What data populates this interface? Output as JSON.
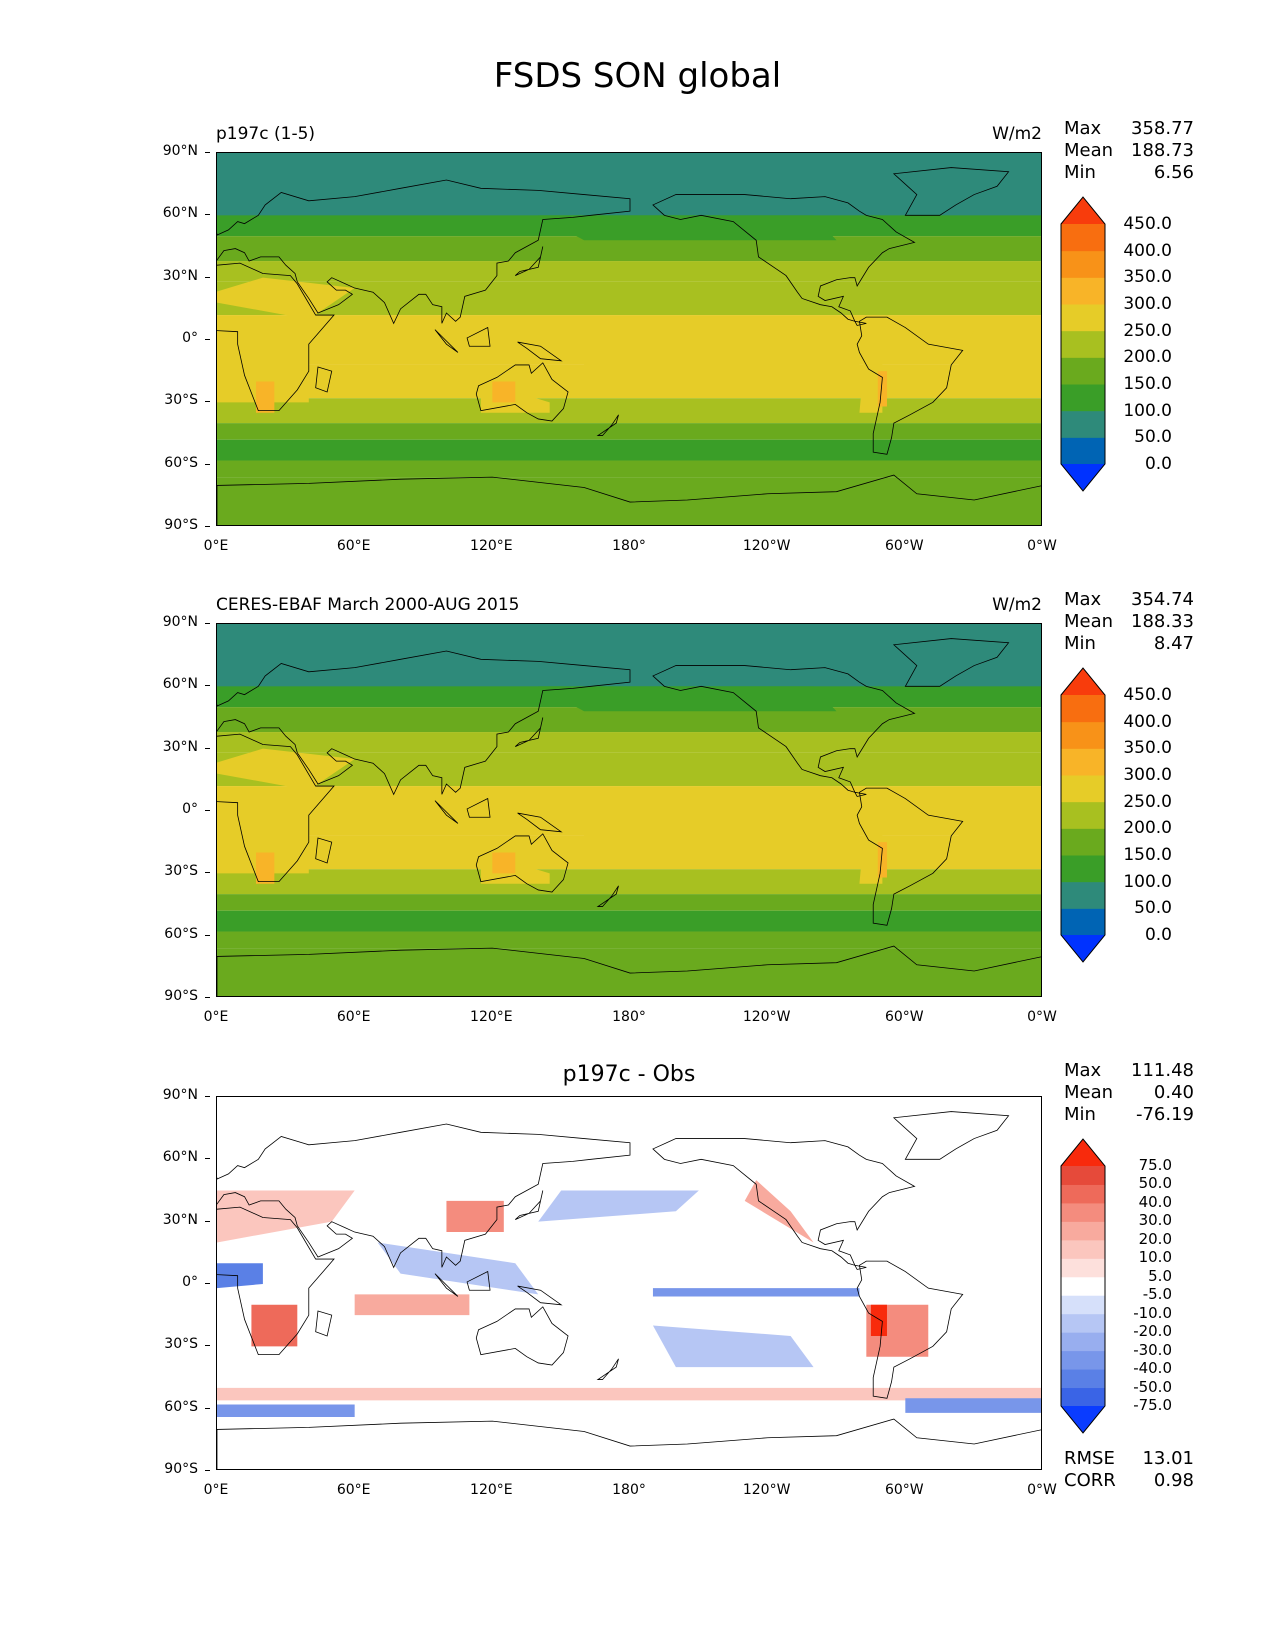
{
  "title": "FSDS SON global",
  "panels": [
    {
      "label": "p197c (1-5)",
      "units": "W/m2",
      "center_title": "",
      "stats": {
        "max_label": "Max",
        "max": "358.77",
        "mean_label": "Mean",
        "mean": "188.73",
        "min_label": "Min",
        "min": "6.56"
      },
      "map_style": "abs"
    },
    {
      "label": "CERES-EBAF March 2000-AUG 2015",
      "units": "W/m2",
      "center_title": "",
      "stats": {
        "max_label": "Max",
        "max": "354.74",
        "mean_label": "Mean",
        "mean": "188.33",
        "min_label": "Min",
        "min": "8.47"
      },
      "map_style": "abs"
    },
    {
      "label": "",
      "units": "",
      "center_title": "p197c - Obs",
      "stats": {
        "max_label": "Max",
        "max": "111.48",
        "mean_label": "Mean",
        "mean": "0.40",
        "min_label": "Min",
        "min": "-76.19"
      },
      "map_style": "diff",
      "extra_stats": {
        "rmse_label": "RMSE",
        "rmse": "13.01",
        "corr_label": "CORR",
        "corr": "0.98"
      }
    }
  ],
  "axes": {
    "yticks": [
      "90°N",
      "60°N",
      "30°N",
      "0°",
      "30°S",
      "60°S",
      "90°S"
    ],
    "xticks": [
      "0°E",
      "60°E",
      "120°E",
      "180°",
      "120°W",
      "60°W",
      "0°W"
    ]
  },
  "colorbars": {
    "abs": {
      "colors": [
        "#0032ff",
        "#0064b4",
        "#2e8a7a",
        "#3a9e28",
        "#6aaa1e",
        "#a8c020",
        "#e6cc28",
        "#f8b428",
        "#f89218",
        "#f86e10",
        "#f83c0c"
      ],
      "labels": [
        "0.0",
        "50.0",
        "100.0",
        "150.0",
        "200.0",
        "250.0",
        "300.0",
        "350.0",
        "400.0",
        "450.0"
      ]
    },
    "diff": {
      "colors": [
        "#0a3cff",
        "#3a64e6",
        "#5a80e6",
        "#7896ea",
        "#98aeef",
        "#b6c6f4",
        "#d6e0fa",
        "#ffffff",
        "#fde0dc",
        "#fbc6be",
        "#f8aa9e",
        "#f48c7e",
        "#ee6a5a",
        "#e64a3a",
        "#f82a0c"
      ],
      "labels": [
        "-75.0",
        "-50.0",
        "-40.0",
        "-30.0",
        "-20.0",
        "-10.0",
        "-5.0",
        "5.0",
        "10.0",
        "20.0",
        "30.0",
        "40.0",
        "50.0",
        "75.0"
      ]
    }
  }
}
